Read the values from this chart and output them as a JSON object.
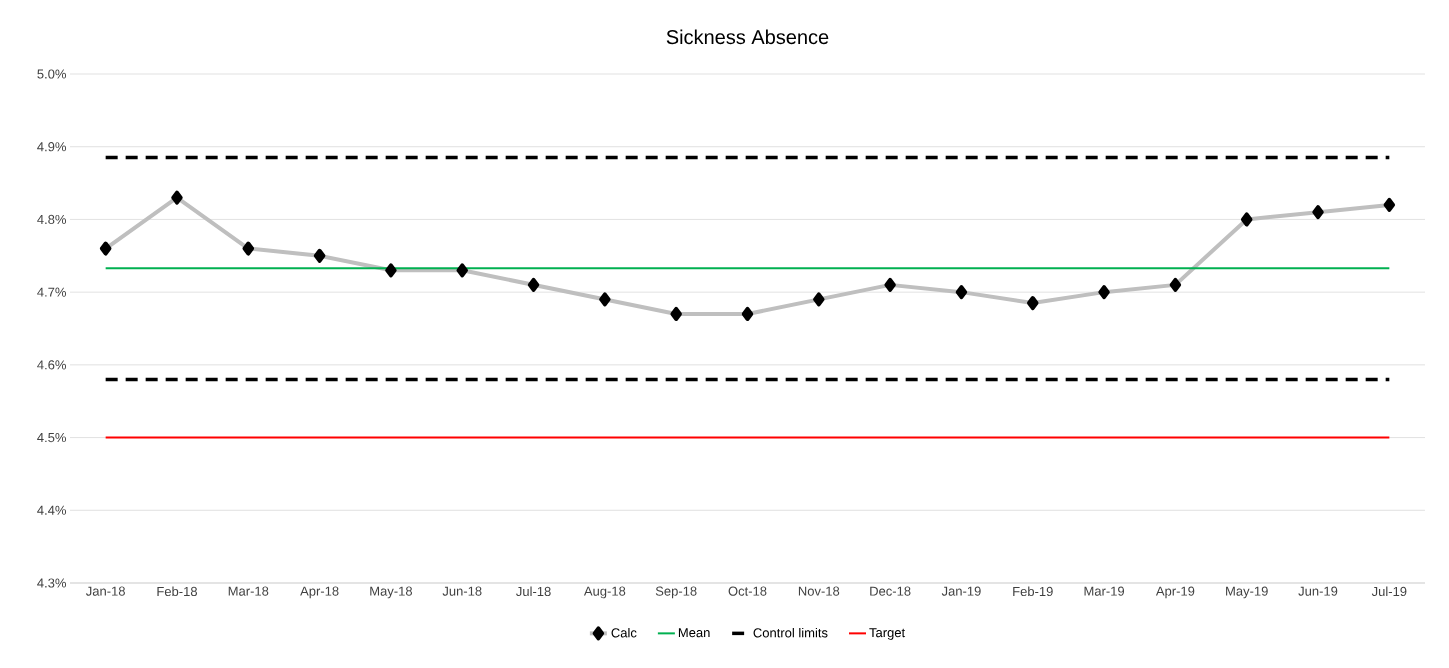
{
  "chart_data": {
    "type": "line",
    "title": "Sickness Absence",
    "categories": [
      "Jan-18",
      "Feb-18",
      "Mar-18",
      "Apr-18",
      "May-18",
      "Jun-18",
      "Jul-18",
      "Aug-18",
      "Sep-18",
      "Oct-18",
      "Nov-18",
      "Dec-18",
      "Jan-19",
      "Feb-19",
      "Mar-19",
      "Apr-19",
      "May-19",
      "Jun-19",
      "Jul-19"
    ],
    "series": [
      {
        "name": "Calc",
        "color": "#bfbfbf",
        "marker": "diamond",
        "line_style": "solid",
        "values": [
          4.76,
          4.83,
          4.76,
          4.75,
          4.73,
          4.73,
          4.71,
          4.69,
          4.67,
          4.67,
          4.69,
          4.71,
          4.7,
          4.685,
          4.7,
          4.71,
          4.8,
          4.81,
          4.82
        ]
      },
      {
        "name": "Mean",
        "color": "#00b050",
        "marker": "none",
        "line_style": "solid",
        "values": [
          4.733,
          4.733,
          4.733,
          4.733,
          4.733,
          4.733,
          4.733,
          4.733,
          4.733,
          4.733,
          4.733,
          4.733,
          4.733,
          4.733,
          4.733,
          4.733,
          4.733,
          4.733,
          4.733
        ]
      },
      {
        "name": "Control limits",
        "color": "#000000",
        "marker": "none",
        "line_style": "dashed",
        "values": [
          4.885,
          4.885,
          4.885,
          4.885,
          4.885,
          4.885,
          4.885,
          4.885,
          4.885,
          4.885,
          4.885,
          4.885,
          4.885,
          4.885,
          4.885,
          4.885,
          4.885,
          4.885,
          4.885
        ]
      },
      {
        "name": null,
        "color": "#000000",
        "marker": "none",
        "line_style": "dashed",
        "values": [
          4.58,
          4.58,
          4.58,
          4.58,
          4.58,
          4.58,
          4.58,
          4.58,
          4.58,
          4.58,
          4.58,
          4.58,
          4.58,
          4.58,
          4.58,
          4.58,
          4.58,
          4.58,
          4.58
        ]
      },
      {
        "name": "Target",
        "color": "#ff0000",
        "marker": "none",
        "line_style": "solid",
        "values": [
          4.5,
          4.5,
          4.5,
          4.5,
          4.5,
          4.5,
          4.5,
          4.5,
          4.5,
          4.5,
          4.5,
          4.5,
          4.5,
          4.5,
          4.5,
          4.5,
          4.5,
          4.5,
          4.5
        ]
      }
    ],
    "ylim": [
      4.3,
      5.0
    ],
    "yticks": [
      {
        "value": 4.3,
        "label": "4.3%"
      },
      {
        "value": 4.4,
        "label": "4.4%"
      },
      {
        "value": 4.5,
        "label": "4.5%"
      },
      {
        "value": 4.6,
        "label": "4.6%"
      },
      {
        "value": 4.7,
        "label": "4.7%"
      },
      {
        "value": 4.8,
        "label": "4.8%"
      },
      {
        "value": 4.9,
        "label": "4.9%"
      },
      {
        "value": 5.0,
        "label": "5.0%"
      }
    ],
    "grid": "y",
    "legend": "bottom"
  }
}
